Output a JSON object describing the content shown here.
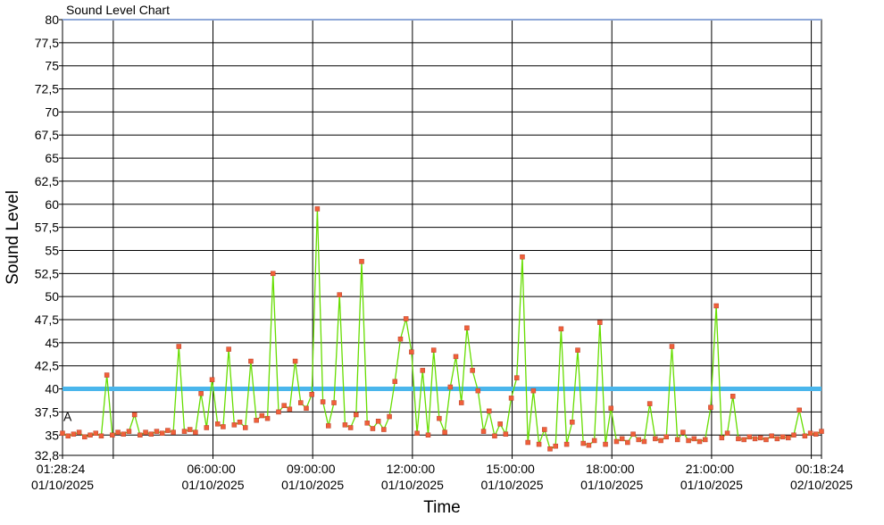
{
  "chart_data": {
    "type": "line",
    "title": "Sound Level Chart",
    "y_label": "Sound Level",
    "x_label": "Time",
    "xlim": [
      "2025-10-01T01:28:24",
      "2025-10-02T00:18:24"
    ],
    "xticks": [
      {
        "value": "2025-10-01T01:28:24",
        "label": "01:28:24 01/10/2025"
      },
      {
        "value": "2025-10-01T03:00:00",
        "label": null
      },
      {
        "value": "2025-10-01T06:00:00",
        "label": "06:00:00 01/10/2025"
      },
      {
        "value": "2025-10-01T09:00:00",
        "label": "09:00:00 01/10/2025"
      },
      {
        "value": "2025-10-01T12:00:00",
        "label": "12:00:00 01/10/2025"
      },
      {
        "value": "2025-10-01T15:00:00",
        "label": "15:00:00 01/10/2025"
      },
      {
        "value": "2025-10-01T18:00:00",
        "label": "18:00:00 01/10/2025"
      },
      {
        "value": "2025-10-01T21:00:00",
        "label": "21:00:00 01/10/2025"
      },
      {
        "value": "2025-10-02T00:00:00",
        "label": null
      },
      {
        "value": "2025-10-02T00:18:24",
        "label": "00:18:24 02/10/2025"
      }
    ],
    "ylim": [
      32.8,
      80
    ],
    "yticks": [
      {
        "value": 32.8,
        "label": "32,8"
      },
      35,
      {
        "value": 37.5,
        "label": "37,5"
      },
      40,
      {
        "value": 42.5,
        "label": "42,5"
      },
      45,
      {
        "value": 47.5,
        "label": "47,5"
      },
      50,
      {
        "value": 52.5,
        "label": "52,5"
      },
      55,
      {
        "value": 57.5,
        "label": "57,5"
      },
      60,
      {
        "value": 62.5,
        "label": "62,5"
      },
      65,
      {
        "value": 67.5,
        "label": "67,5"
      },
      70,
      {
        "value": 72.5,
        "label": "72,5"
      },
      75,
      {
        "value": 77.5,
        "label": "77,5"
      },
      80
    ],
    "grid": true,
    "threshold": {
      "value": 40,
      "color": "#4ab6ec"
    },
    "annotations": [
      {
        "text": "A",
        "x": "2025-10-01T01:28:24",
        "y": 37
      }
    ],
    "x": [
      "2025-10-01T01:28:24",
      "2025-10-01T01:38:24",
      "2025-10-01T01:48:24",
      "2025-10-01T01:58:24",
      "2025-10-01T02:08:24",
      "2025-10-01T02:18:24",
      "2025-10-01T02:28:24",
      "2025-10-01T02:38:24",
      "2025-10-01T02:48:24",
      "2025-10-01T02:58:24",
      "2025-10-01T03:08:24",
      "2025-10-01T03:18:24",
      "2025-10-01T03:28:24",
      "2025-10-01T03:38:24",
      "2025-10-01T03:48:24",
      "2025-10-01T03:58:24",
      "2025-10-01T04:08:24",
      "2025-10-01T04:18:24",
      "2025-10-01T04:28:24",
      "2025-10-01T04:38:24",
      "2025-10-01T04:48:24",
      "2025-10-01T04:58:24",
      "2025-10-01T05:08:24",
      "2025-10-01T05:18:24",
      "2025-10-01T05:28:24",
      "2025-10-01T05:38:24",
      "2025-10-01T05:48:24",
      "2025-10-01T05:58:24",
      "2025-10-01T06:08:24",
      "2025-10-01T06:18:24",
      "2025-10-01T06:28:24",
      "2025-10-01T06:38:24",
      "2025-10-01T06:48:24",
      "2025-10-01T06:58:24",
      "2025-10-01T07:08:24",
      "2025-10-01T07:18:24",
      "2025-10-01T07:28:24",
      "2025-10-01T07:38:24",
      "2025-10-01T07:48:24",
      "2025-10-01T07:58:24",
      "2025-10-01T08:08:24",
      "2025-10-01T08:18:24",
      "2025-10-01T08:28:24",
      "2025-10-01T08:38:24",
      "2025-10-01T08:48:24",
      "2025-10-01T08:58:24",
      "2025-10-01T09:08:24",
      "2025-10-01T09:18:24",
      "2025-10-01T09:28:24",
      "2025-10-01T09:38:24",
      "2025-10-01T09:48:24",
      "2025-10-01T09:58:24",
      "2025-10-01T10:08:24",
      "2025-10-01T10:18:24",
      "2025-10-01T10:28:24",
      "2025-10-01T10:38:24",
      "2025-10-01T10:48:24",
      "2025-10-01T10:58:24",
      "2025-10-01T11:08:24",
      "2025-10-01T11:18:24",
      "2025-10-01T11:28:24",
      "2025-10-01T11:38:24",
      "2025-10-01T11:48:24",
      "2025-10-01T11:58:24",
      "2025-10-01T12:08:24",
      "2025-10-01T12:18:24",
      "2025-10-01T12:28:24",
      "2025-10-01T12:38:24",
      "2025-10-01T12:48:24",
      "2025-10-01T12:58:24",
      "2025-10-01T13:08:24",
      "2025-10-01T13:18:24",
      "2025-10-01T13:28:24",
      "2025-10-01T13:38:24",
      "2025-10-01T13:48:24",
      "2025-10-01T13:58:24",
      "2025-10-01T14:08:24",
      "2025-10-01T14:18:24",
      "2025-10-01T14:28:24",
      "2025-10-01T14:38:24",
      "2025-10-01T14:48:24",
      "2025-10-01T14:58:24",
      "2025-10-01T15:08:24",
      "2025-10-01T15:18:24",
      "2025-10-01T15:28:24",
      "2025-10-01T15:38:24",
      "2025-10-01T15:48:24",
      "2025-10-01T15:58:24",
      "2025-10-01T16:08:24",
      "2025-10-01T16:18:24",
      "2025-10-01T16:28:24",
      "2025-10-01T16:38:24",
      "2025-10-01T16:48:24",
      "2025-10-01T16:58:24",
      "2025-10-01T17:08:24",
      "2025-10-01T17:18:24",
      "2025-10-01T17:28:24",
      "2025-10-01T17:38:24",
      "2025-10-01T17:48:24",
      "2025-10-01T17:58:24",
      "2025-10-01T18:08:24",
      "2025-10-01T18:18:24",
      "2025-10-01T18:28:24",
      "2025-10-01T18:38:24",
      "2025-10-01T18:48:24",
      "2025-10-01T18:58:24",
      "2025-10-01T19:08:24",
      "2025-10-01T19:18:24",
      "2025-10-01T19:28:24",
      "2025-10-01T19:38:24",
      "2025-10-01T19:48:24",
      "2025-10-01T19:58:24",
      "2025-10-01T20:08:24",
      "2025-10-01T20:18:24",
      "2025-10-01T20:28:24",
      "2025-10-01T20:38:24",
      "2025-10-01T20:48:24",
      "2025-10-01T20:58:24",
      "2025-10-01T21:08:24",
      "2025-10-01T21:18:24",
      "2025-10-01T21:28:24",
      "2025-10-01T21:38:24",
      "2025-10-01T21:48:24",
      "2025-10-01T21:58:24",
      "2025-10-01T22:08:24",
      "2025-10-01T22:18:24",
      "2025-10-01T22:28:24",
      "2025-10-01T22:38:24",
      "2025-10-01T22:48:24",
      "2025-10-01T22:58:24",
      "2025-10-01T23:08:24",
      "2025-10-01T23:18:24",
      "2025-10-01T23:28:24",
      "2025-10-01T23:38:24",
      "2025-10-01T23:48:24",
      "2025-10-01T23:58:24",
      "2025-10-02T00:08:24",
      "2025-10-02T00:18:24"
    ],
    "series": [
      {
        "color": "#66dd00",
        "marker_color": "#f0603a",
        "values": [
          35.2,
          34.9,
          35.1,
          35.3,
          34.8,
          35.0,
          35.2,
          34.9,
          41.5,
          35.0,
          35.3,
          35.1,
          35.4,
          37.2,
          35.0,
          35.3,
          35.1,
          35.4,
          35.2,
          35.5,
          35.3,
          44.6,
          35.4,
          35.6,
          35.3,
          39.5,
          35.8,
          41.0,
          36.2,
          35.9,
          44.3,
          36.1,
          36.4,
          35.8,
          43.0,
          36.6,
          37.1,
          36.8,
          52.5,
          37.5,
          38.2,
          37.8,
          43.0,
          38.5,
          37.9,
          39.4,
          59.5,
          38.6,
          36.0,
          38.5,
          50.2,
          36.1,
          35.8,
          37.2,
          53.8,
          36.3,
          35.7,
          36.5,
          35.6,
          37.0,
          40.8,
          45.4,
          47.6,
          44.0,
          35.2,
          42.0,
          35.0,
          44.2,
          36.8,
          35.3,
          40.2,
          43.5,
          38.5,
          46.6,
          42.0,
          39.8,
          35.4,
          37.6,
          34.9,
          36.2,
          35.1,
          39.0,
          41.2,
          54.3,
          34.2,
          39.8,
          34.0,
          35.6,
          33.5,
          33.8,
          46.5,
          34.0,
          36.4,
          44.2,
          34.1,
          33.9,
          34.4,
          47.2,
          34.0,
          37.9,
          34.3,
          34.6,
          34.2,
          35.1,
          34.5,
          34.3,
          38.4,
          34.6,
          34.4,
          34.8,
          44.6,
          34.5,
          35.3,
          34.4,
          34.6,
          34.3,
          34.5,
          38.0,
          49.0,
          34.7,
          35.2,
          39.2,
          34.6,
          34.5,
          34.8,
          34.6,
          34.7,
          34.5,
          34.9,
          34.6,
          34.8,
          34.7,
          35.0,
          37.7,
          34.9,
          35.2,
          35.1,
          35.4
        ]
      }
    ]
  }
}
